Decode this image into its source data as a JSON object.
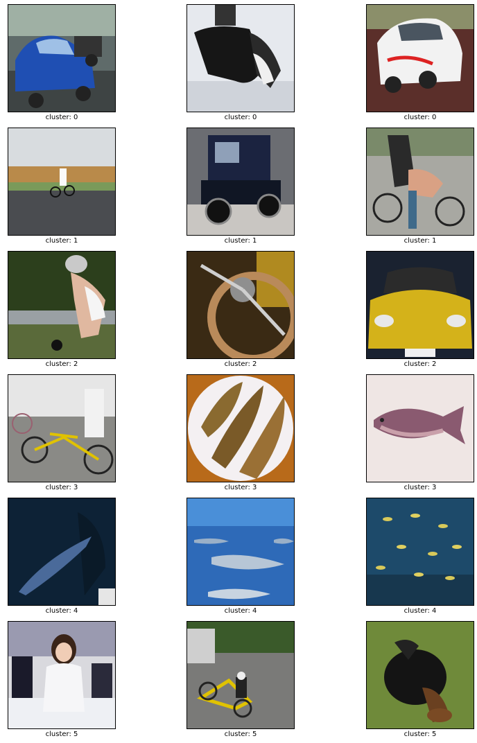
{
  "grid": {
    "items": [
      {
        "caption": "cluster: 0",
        "subject": "blue car"
      },
      {
        "caption": "cluster: 0",
        "subject": "husky dog"
      },
      {
        "caption": "cluster: 0",
        "subject": "white car"
      },
      {
        "caption": "cluster: 1",
        "subject": "cyclist on road"
      },
      {
        "caption": "cluster: 1",
        "subject": "vintage car"
      },
      {
        "caption": "cluster: 1",
        "subject": "bicycle riders"
      },
      {
        "caption": "cluster: 2",
        "subject": "cyclist helmet"
      },
      {
        "caption": "cluster: 2",
        "subject": "steering wheel"
      },
      {
        "caption": "cluster: 2",
        "subject": "yellow sports car"
      },
      {
        "caption": "cluster: 3",
        "subject": "tandem bicycle"
      },
      {
        "caption": "cluster: 3",
        "subject": "grilled fish plate"
      },
      {
        "caption": "cluster: 3",
        "subject": "fish"
      },
      {
        "caption": "cluster: 4",
        "subject": "shark dark water"
      },
      {
        "caption": "cluster: 4",
        "subject": "sharks blue water"
      },
      {
        "caption": "cluster: 4",
        "subject": "fish school aquarium"
      },
      {
        "caption": "cluster: 5",
        "subject": "woman at expo"
      },
      {
        "caption": "cluster: 5",
        "subject": "recumbent bike rider"
      },
      {
        "caption": "cluster: 5",
        "subject": "puppy on grass"
      }
    ]
  }
}
